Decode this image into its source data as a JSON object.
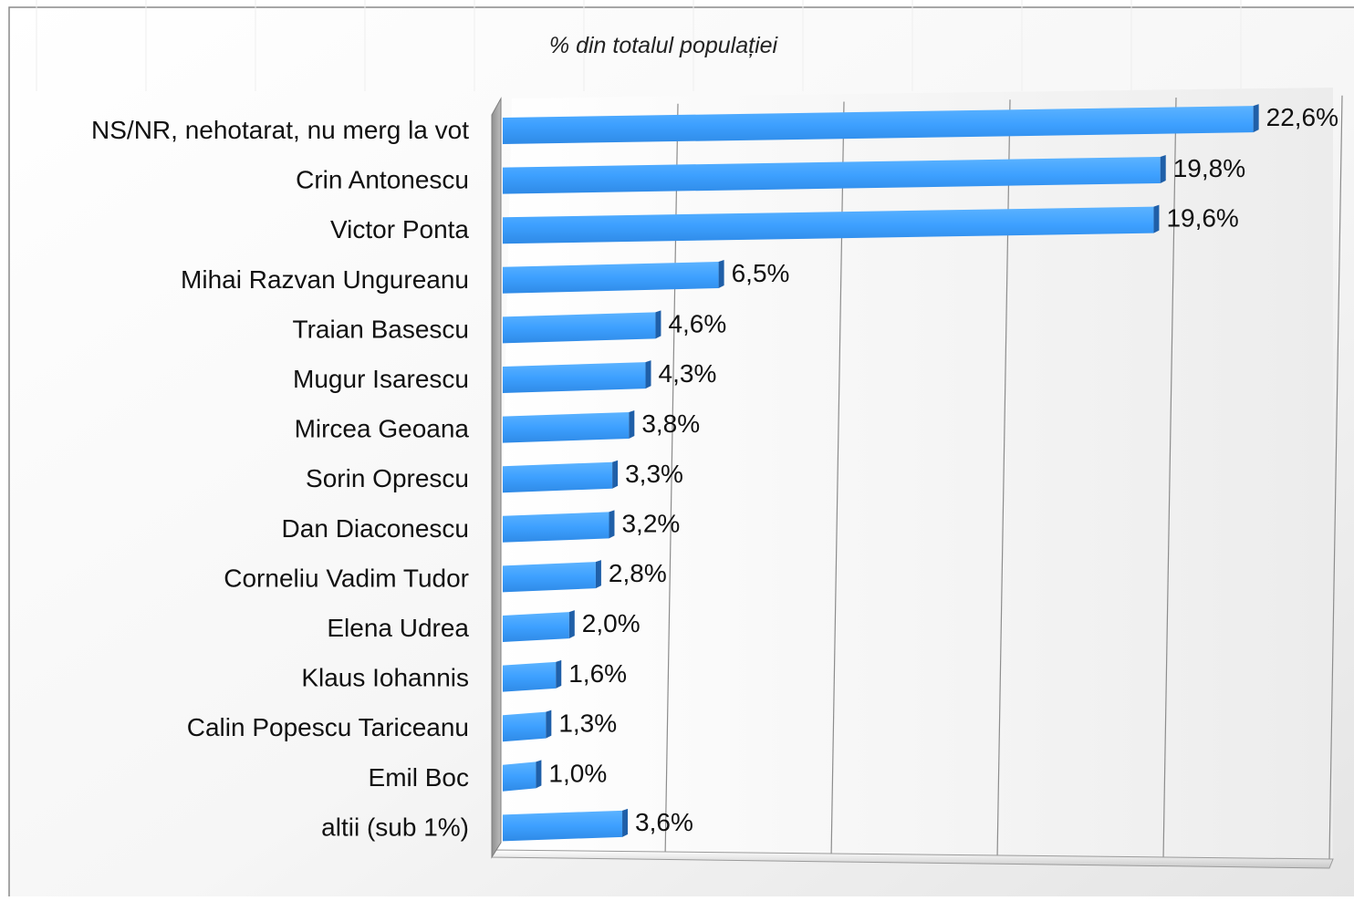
{
  "chart_data": {
    "type": "bar",
    "orientation": "horizontal",
    "title": "% din totalul populației",
    "categories": [
      "NS/NR, nehotarat, nu merg la vot",
      "Crin Antonescu",
      "Victor Ponta",
      "Mihai Razvan Ungureanu",
      "Traian Basescu",
      "Mugur Isarescu",
      "Mircea Geoana",
      "Sorin Oprescu",
      "Dan Diaconescu",
      "Corneliu Vadim Tudor",
      "Elena Udrea",
      "Klaus Iohannis",
      "Calin Popescu Tariceanu",
      "Emil Boc",
      "altii (sub 1%)"
    ],
    "values": [
      22.6,
      19.8,
      19.6,
      6.5,
      4.6,
      4.3,
      3.8,
      3.3,
      3.2,
      2.8,
      2.0,
      1.6,
      1.3,
      1.0,
      3.6
    ],
    "labels": [
      "22,6%",
      "19,8%",
      "19,6%",
      "6,5%",
      "4,6%",
      "4,3%",
      "3,8%",
      "3,3%",
      "3,2%",
      "2,8%",
      "2,0%",
      "1,6%",
      "1,3%",
      "1,0%",
      "3,6%"
    ],
    "xlim": [
      0,
      25
    ],
    "grid": true,
    "colors": {
      "bar": "#3da0ff",
      "bar_end": "#1f5fa8",
      "wall": "#a9a9a9",
      "gridline": "#8c8c8c",
      "background": "#ffffff"
    }
  }
}
